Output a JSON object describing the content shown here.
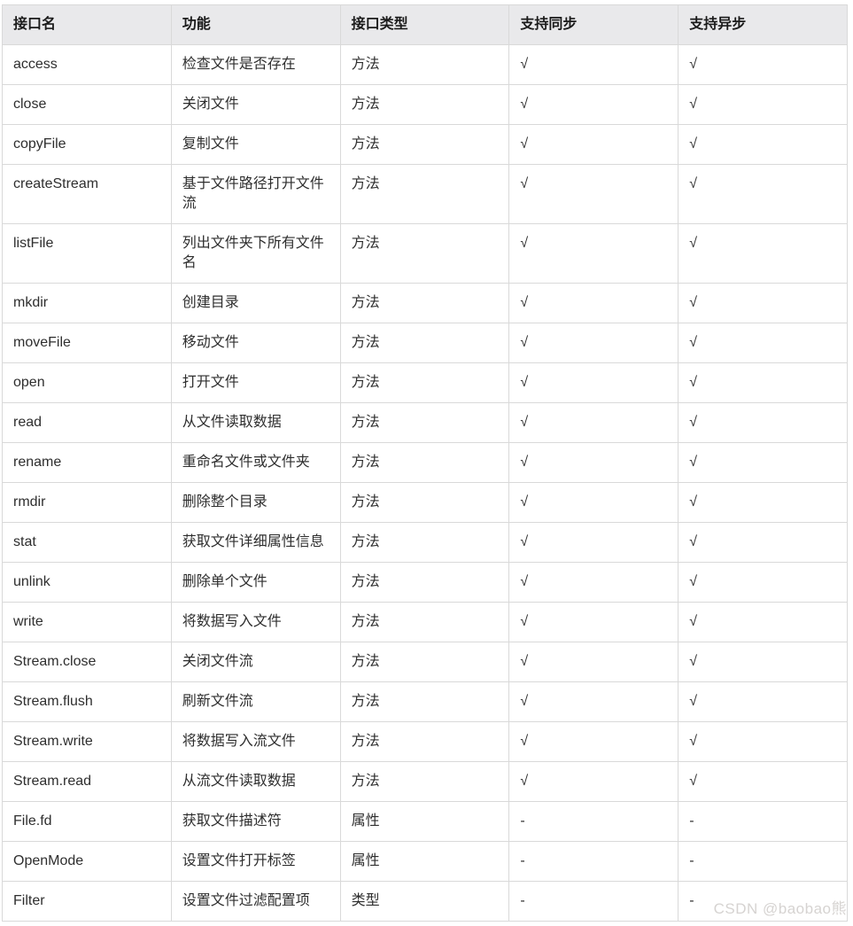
{
  "table": {
    "columns": [
      {
        "label": "接口名"
      },
      {
        "label": "功能"
      },
      {
        "label": "接口类型"
      },
      {
        "label": "支持同步"
      },
      {
        "label": "支持异步"
      }
    ],
    "rows": [
      {
        "name": "access",
        "desc": "检查文件是否存在",
        "type": "方法",
        "sync": "√",
        "async": "√"
      },
      {
        "name": "close",
        "desc": "关闭文件",
        "type": "方法",
        "sync": "√",
        "async": "√"
      },
      {
        "name": "copyFile",
        "desc": "复制文件",
        "type": "方法",
        "sync": "√",
        "async": "√"
      },
      {
        "name": "createStream",
        "desc": "基于文件路径打开文件流",
        "type": "方法",
        "sync": "√",
        "async": "√"
      },
      {
        "name": "listFile",
        "desc": "列出文件夹下所有文件名",
        "type": "方法",
        "sync": "√",
        "async": "√"
      },
      {
        "name": "mkdir",
        "desc": "创建目录",
        "type": "方法",
        "sync": "√",
        "async": "√"
      },
      {
        "name": "moveFile",
        "desc": "移动文件",
        "type": "方法",
        "sync": "√",
        "async": "√"
      },
      {
        "name": "open",
        "desc": "打开文件",
        "type": "方法",
        "sync": "√",
        "async": "√"
      },
      {
        "name": "read",
        "desc": "从文件读取数据",
        "type": "方法",
        "sync": "√",
        "async": "√"
      },
      {
        "name": "rename",
        "desc": "重命名文件或文件夹",
        "type": "方法",
        "sync": "√",
        "async": "√"
      },
      {
        "name": "rmdir",
        "desc": "删除整个目录",
        "type": "方法",
        "sync": "√",
        "async": "√"
      },
      {
        "name": "stat",
        "desc": "获取文件详细属性信息",
        "type": "方法",
        "sync": "√",
        "async": "√"
      },
      {
        "name": "unlink",
        "desc": "删除单个文件",
        "type": "方法",
        "sync": "√",
        "async": "√"
      },
      {
        "name": "write",
        "desc": "将数据写入文件",
        "type": "方法",
        "sync": "√",
        "async": "√"
      },
      {
        "name": "Stream.close",
        "desc": "关闭文件流",
        "type": "方法",
        "sync": "√",
        "async": "√"
      },
      {
        "name": "Stream.flush",
        "desc": "刷新文件流",
        "type": "方法",
        "sync": "√",
        "async": "√"
      },
      {
        "name": "Stream.write",
        "desc": "将数据写入流文件",
        "type": "方法",
        "sync": "√",
        "async": "√"
      },
      {
        "name": "Stream.read",
        "desc": "从流文件读取数据",
        "type": "方法",
        "sync": "√",
        "async": "√"
      },
      {
        "name": "File.fd",
        "desc": "获取文件描述符",
        "type": "属性",
        "sync": "-",
        "async": "-"
      },
      {
        "name": "OpenMode",
        "desc": "设置文件打开标签",
        "type": "属性",
        "sync": "-",
        "async": "-"
      },
      {
        "name": "Filter",
        "desc": "设置文件过滤配置项",
        "type": "类型",
        "sync": "-",
        "async": "-"
      }
    ]
  },
  "watermark": {
    "text": "CSDN @baobao熊"
  },
  "colors": {
    "header_background": "#e9e9eb",
    "border": "#d9d9d9",
    "header_text": "#1b1b1b",
    "body_text": "#2e2e2e",
    "watermark_text": "#d6d3d1"
  }
}
